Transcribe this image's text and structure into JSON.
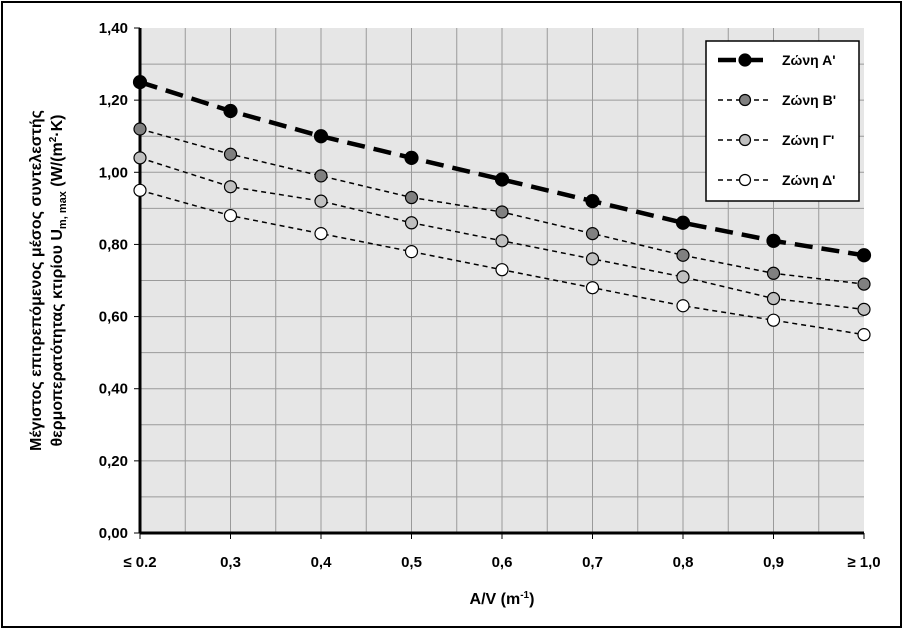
{
  "chart_data": {
    "type": "line",
    "x": [
      0.2,
      0.3,
      0.4,
      0.5,
      0.6,
      0.7,
      0.8,
      0.9,
      1.0
    ],
    "x_tick_labels": [
      "≤ 0.2",
      "0,3",
      "0,4",
      "0,5",
      "0,6",
      "0,7",
      "0,8",
      "0,9",
      "≥ 1,0"
    ],
    "y_tick_labels": [
      "0,00",
      "0,20",
      "0,40",
      "0,60",
      "0,80",
      "1,00",
      "1,20",
      "1,40"
    ],
    "y_ticks": [
      0,
      0.2,
      0.4,
      0.6,
      0.8,
      1.0,
      1.2,
      1.4
    ],
    "xlim": [
      0.2,
      1.0
    ],
    "ylim": [
      0,
      1.4
    ],
    "grid": true,
    "xlabel_main": "A/V (m",
    "xlabel_sup": "-1",
    "xlabel_end": ")",
    "ylabel_line1": "Μέγιστος επιτρεπόμενος μέσος συντελεστής",
    "ylabel_line2_main": "θερμοπερατότητας κτιρίου U",
    "ylabel_line2_sub": "m, max",
    "ylabel_line2_unit_a": " (W/(m",
    "ylabel_line2_unit_sup": "2",
    "ylabel_line2_unit_b": "·K)",
    "legend_position": "top-right",
    "series": [
      {
        "name": "Ζώνη Α'",
        "values": [
          1.25,
          1.17,
          1.1,
          1.04,
          0.98,
          0.92,
          0.86,
          0.81,
          0.77
        ],
        "marker_fill": "#000000",
        "line_style": "thick-dash"
      },
      {
        "name": "Ζώνη Β'",
        "values": [
          1.12,
          1.05,
          0.99,
          0.93,
          0.89,
          0.83,
          0.77,
          0.72,
          0.69
        ],
        "marker_fill": "#808080",
        "line_style": "thin-dash"
      },
      {
        "name": "Ζώνη Γ'",
        "values": [
          1.04,
          0.96,
          0.92,
          0.86,
          0.81,
          0.76,
          0.71,
          0.65,
          0.62
        ],
        "marker_fill": "#c0c0c0",
        "line_style": "thin-dash"
      },
      {
        "name": "Ζώνη Δ'",
        "values": [
          0.95,
          0.88,
          0.83,
          0.78,
          0.73,
          0.68,
          0.63,
          0.59,
          0.55
        ],
        "marker_fill": "#ffffff",
        "line_style": "thin-dash"
      }
    ]
  }
}
